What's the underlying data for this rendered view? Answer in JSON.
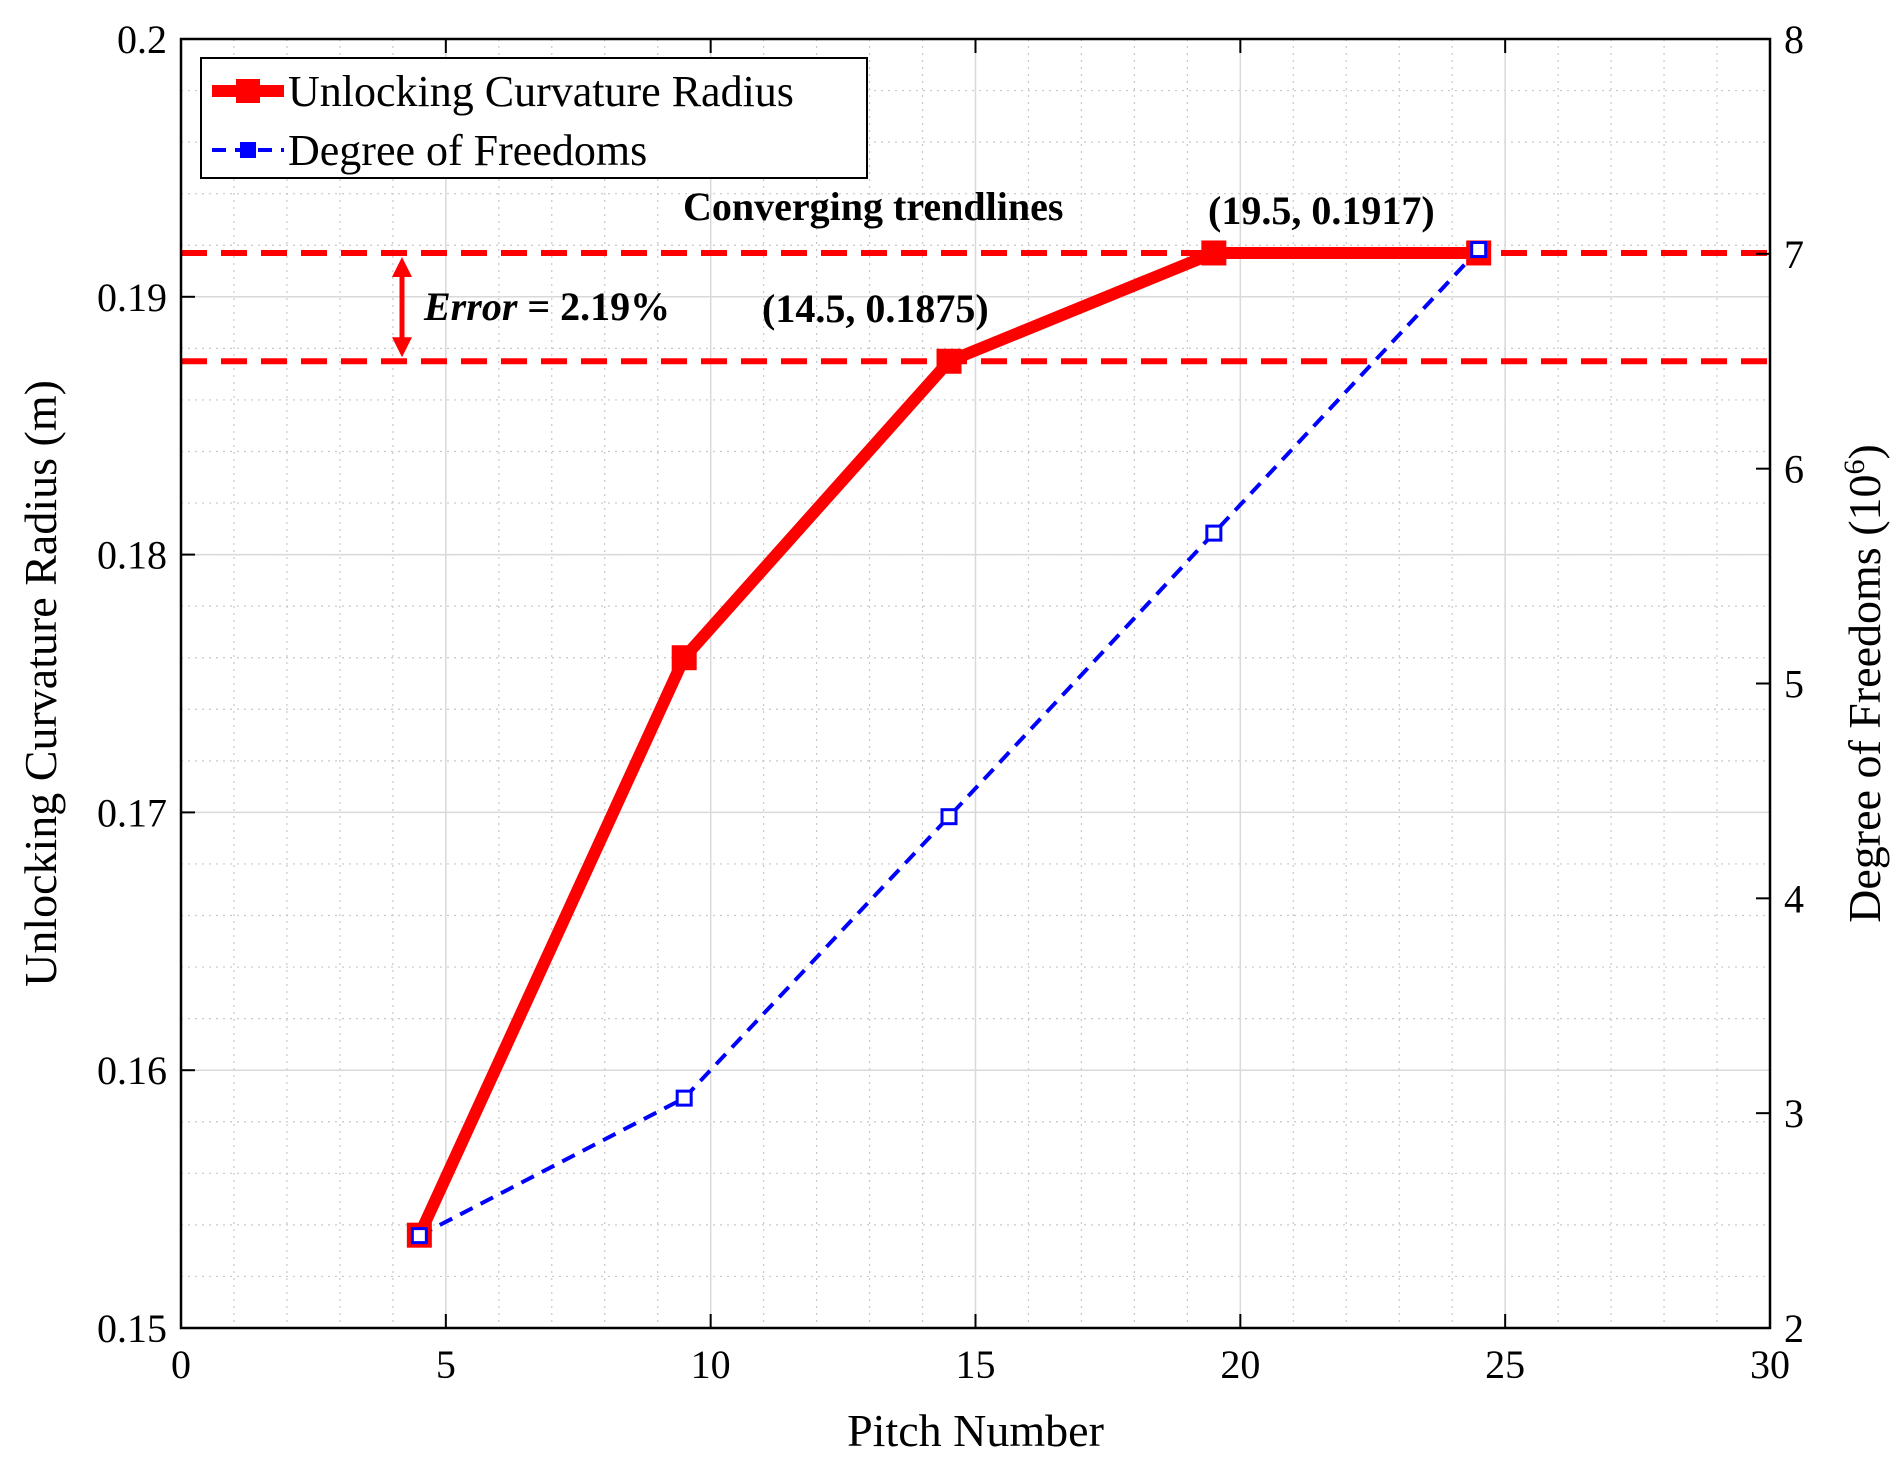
{
  "chart_data": {
    "type": "line",
    "xlabel": "Pitch Number",
    "ylabel_left": "Unlocking Curvature Radius (m)",
    "ylabel_right_main": "Degree of Freedoms (10",
    "ylabel_right_sup": "6",
    "ylabel_right_close": ")",
    "xlim": [
      0,
      30
    ],
    "ylim_left": [
      0.15,
      0.2
    ],
    "ylim_right": [
      2,
      8
    ],
    "xticks": [
      0,
      5,
      10,
      15,
      20,
      25,
      30
    ],
    "xtick_labels": [
      "0",
      "5",
      "10",
      "15",
      "20",
      "25",
      "30"
    ],
    "yticks_left": [
      0.15,
      0.16,
      0.17,
      0.18,
      0.19,
      0.2
    ],
    "ytick_labels_left": [
      "0.15",
      "0.16",
      "0.17",
      "0.18",
      "0.19",
      "0.2"
    ],
    "yticks_right": [
      2,
      3,
      4,
      5,
      6,
      7,
      8
    ],
    "ytick_labels_right": [
      "2",
      "3",
      "4",
      "5",
      "6",
      "7",
      "8"
    ],
    "grid": true,
    "minor_grid": true,
    "legend_position": "top-left",
    "series": [
      {
        "name": "Unlocking Curvature Radius",
        "axis": "left",
        "color": "#ff0000",
        "style": "solid",
        "marker": "square-filled",
        "x": [
          4.5,
          9.5,
          14.5,
          19.5,
          24.5
        ],
        "y": [
          0.1536,
          0.176,
          0.1875,
          0.1917,
          0.1917
        ]
      },
      {
        "name": "Degree of Freedoms",
        "axis": "right",
        "color": "#0000ff",
        "style": "dashed",
        "marker": "square-open",
        "x": [
          4.5,
          9.5,
          14.5,
          19.5,
          24.5
        ],
        "y": [
          2.43,
          3.07,
          4.38,
          5.7,
          7.02
        ]
      }
    ],
    "reference_lines": [
      {
        "axis": "left",
        "y": 0.1917,
        "color": "#ff0000",
        "style": "dashed"
      },
      {
        "axis": "left",
        "y": 0.1875,
        "color": "#ff0000",
        "style": "dashed"
      }
    ],
    "annotations": {
      "converging": "Converging trendlines",
      "error_label": "Error",
      "error_value": " = 2.19%",
      "point_1875": "(14.5, 0.1875)",
      "point_1917": "(19.5, 0.1917)"
    }
  }
}
